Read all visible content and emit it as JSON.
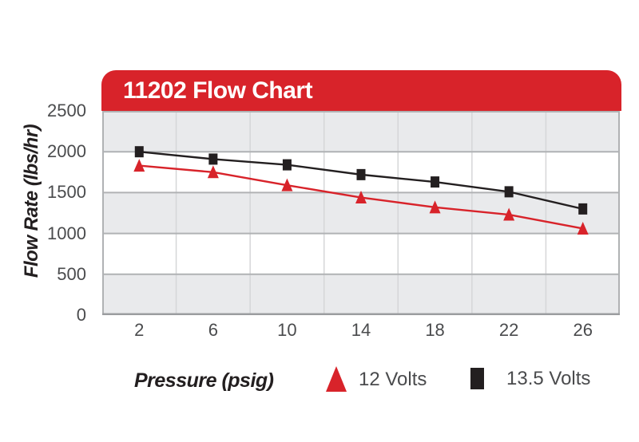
{
  "title": "11202 Flow Chart",
  "colors": {
    "banner_red": "#d8232a",
    "series_red": "#d8232a",
    "series_black": "#231f20",
    "band_gray": "#e9eaec",
    "band_white": "#ffffff",
    "gridline": "#b0b2b4",
    "vertical_gridline": "#d5d6d8",
    "axis_line": "#9b9da0",
    "tick_text": "#4a4b4d",
    "banner_text": "#ffffff"
  },
  "chart_data": {
    "type": "line",
    "title": "11202 Flow Chart",
    "xlabel": "Pressure (psig)",
    "ylabel": "Flow Rate (lbs/hr)",
    "x": [
      2,
      6,
      10,
      14,
      18,
      22,
      26
    ],
    "x_ticks": [
      2,
      6,
      10,
      14,
      18,
      22,
      26
    ],
    "y_ticks": [
      0,
      500,
      1000,
      1500,
      2000,
      2500
    ],
    "xlim": [
      0,
      28
    ],
    "ylim": [
      0,
      2500
    ],
    "grid": true,
    "legend_position": "bottom",
    "series": [
      {
        "name": "12 Volts",
        "marker": "triangle",
        "color": "#d8232a",
        "values": [
          1830,
          1750,
          1590,
          1440,
          1320,
          1230,
          1060
        ]
      },
      {
        "name": "13.5 Volts",
        "marker": "square",
        "color": "#231f20",
        "values": [
          2000,
          1910,
          1840,
          1720,
          1630,
          1510,
          1300
        ]
      }
    ]
  }
}
